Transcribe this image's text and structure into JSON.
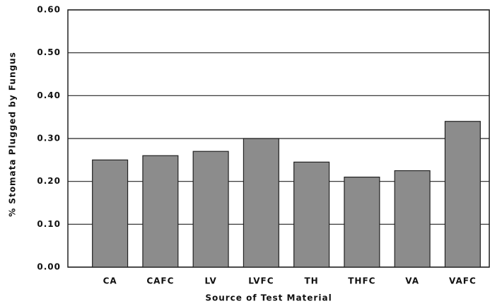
{
  "chart_data": {
    "type": "bar",
    "categories": [
      "CA",
      "CAFC",
      "LV",
      "LVFC",
      "TH",
      "THFC",
      "VA",
      "VAFC"
    ],
    "values": [
      0.25,
      0.26,
      0.27,
      0.3,
      0.245,
      0.21,
      0.225,
      0.34
    ],
    "color": "#8c8c8c",
    "x_label": "Source of Test Material",
    "y_label": "% Stomata Plugged by Fungus",
    "ylim": [
      0,
      0.6
    ],
    "yticks": [
      {
        "value": 0,
        "label": "0.00"
      },
      {
        "value": 0.1,
        "label": "0.10"
      },
      {
        "value": 0.2,
        "label": "0.20"
      },
      {
        "value": 0.3,
        "label": "0.30"
      },
      {
        "value": 0.4,
        "label": "0.40"
      },
      {
        "value": 0.5,
        "label": "0.50"
      },
      {
        "value": 0.6,
        "label": "0.60"
      }
    ],
    "grid": true
  }
}
